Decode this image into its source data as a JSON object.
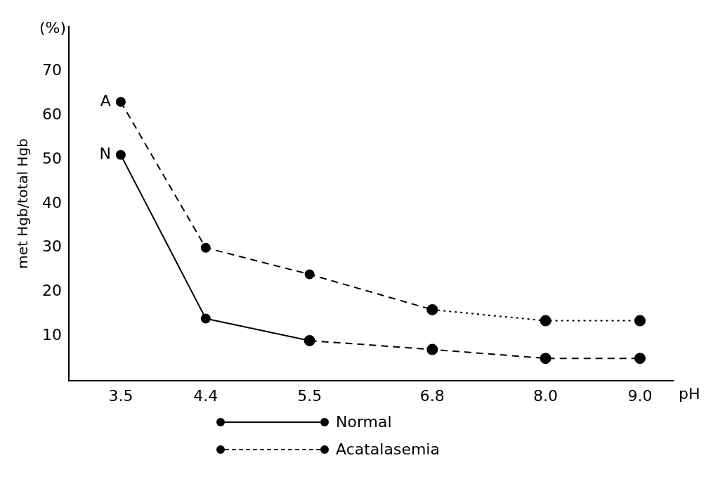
{
  "chart_data": {
    "type": "line",
    "ylabel": "met Hgb/total Hgb",
    "xlabel": "pH",
    "series": [
      {
        "name": "Normal",
        "color": "#000000",
        "line_style": "solid",
        "x": [
          3.5,
          4.4,
          5.5
        ],
        "values": [
          51,
          14,
          9
        ]
      },
      {
        "color": "#000000",
        "line_style": "dashed",
        "x": [
          5.5,
          6.8,
          8.0,
          9.0
        ],
        "values": [
          9,
          7,
          5,
          5
        ]
      },
      {
        "name": "Acatalasemia",
        "color": "#000000",
        "line_style": "dashed",
        "x": [
          3.5,
          4.4,
          5.5,
          6.8
        ],
        "values": [
          63,
          30,
          24,
          16
        ]
      },
      {
        "color": "#000000",
        "line_style": "dotted",
        "x": [
          6.8,
          8.0,
          9.0
        ],
        "values": [
          16,
          13.5,
          13.5
        ]
      }
    ],
    "xlim": [
      2.95,
      9.35
    ],
    "xticks": [
      3.5,
      4.4,
      5.5,
      6.8,
      {
        "value": 8,
        "label": "8.0"
      },
      {
        "value": 9,
        "label": "9.0"
      }
    ],
    "ylim": [
      0,
      80
    ],
    "yticks": [
      10,
      20,
      30,
      40,
      50,
      60,
      70
    ],
    "grid": false,
    "legend": "bottom",
    "marker": "circle",
    "annotations": [
      "(%)",
      {
        "text": "A",
        "x": 3.5,
        "y": 63
      },
      {
        "text": "N",
        "x": 3.5,
        "y": 51
      }
    ]
  }
}
